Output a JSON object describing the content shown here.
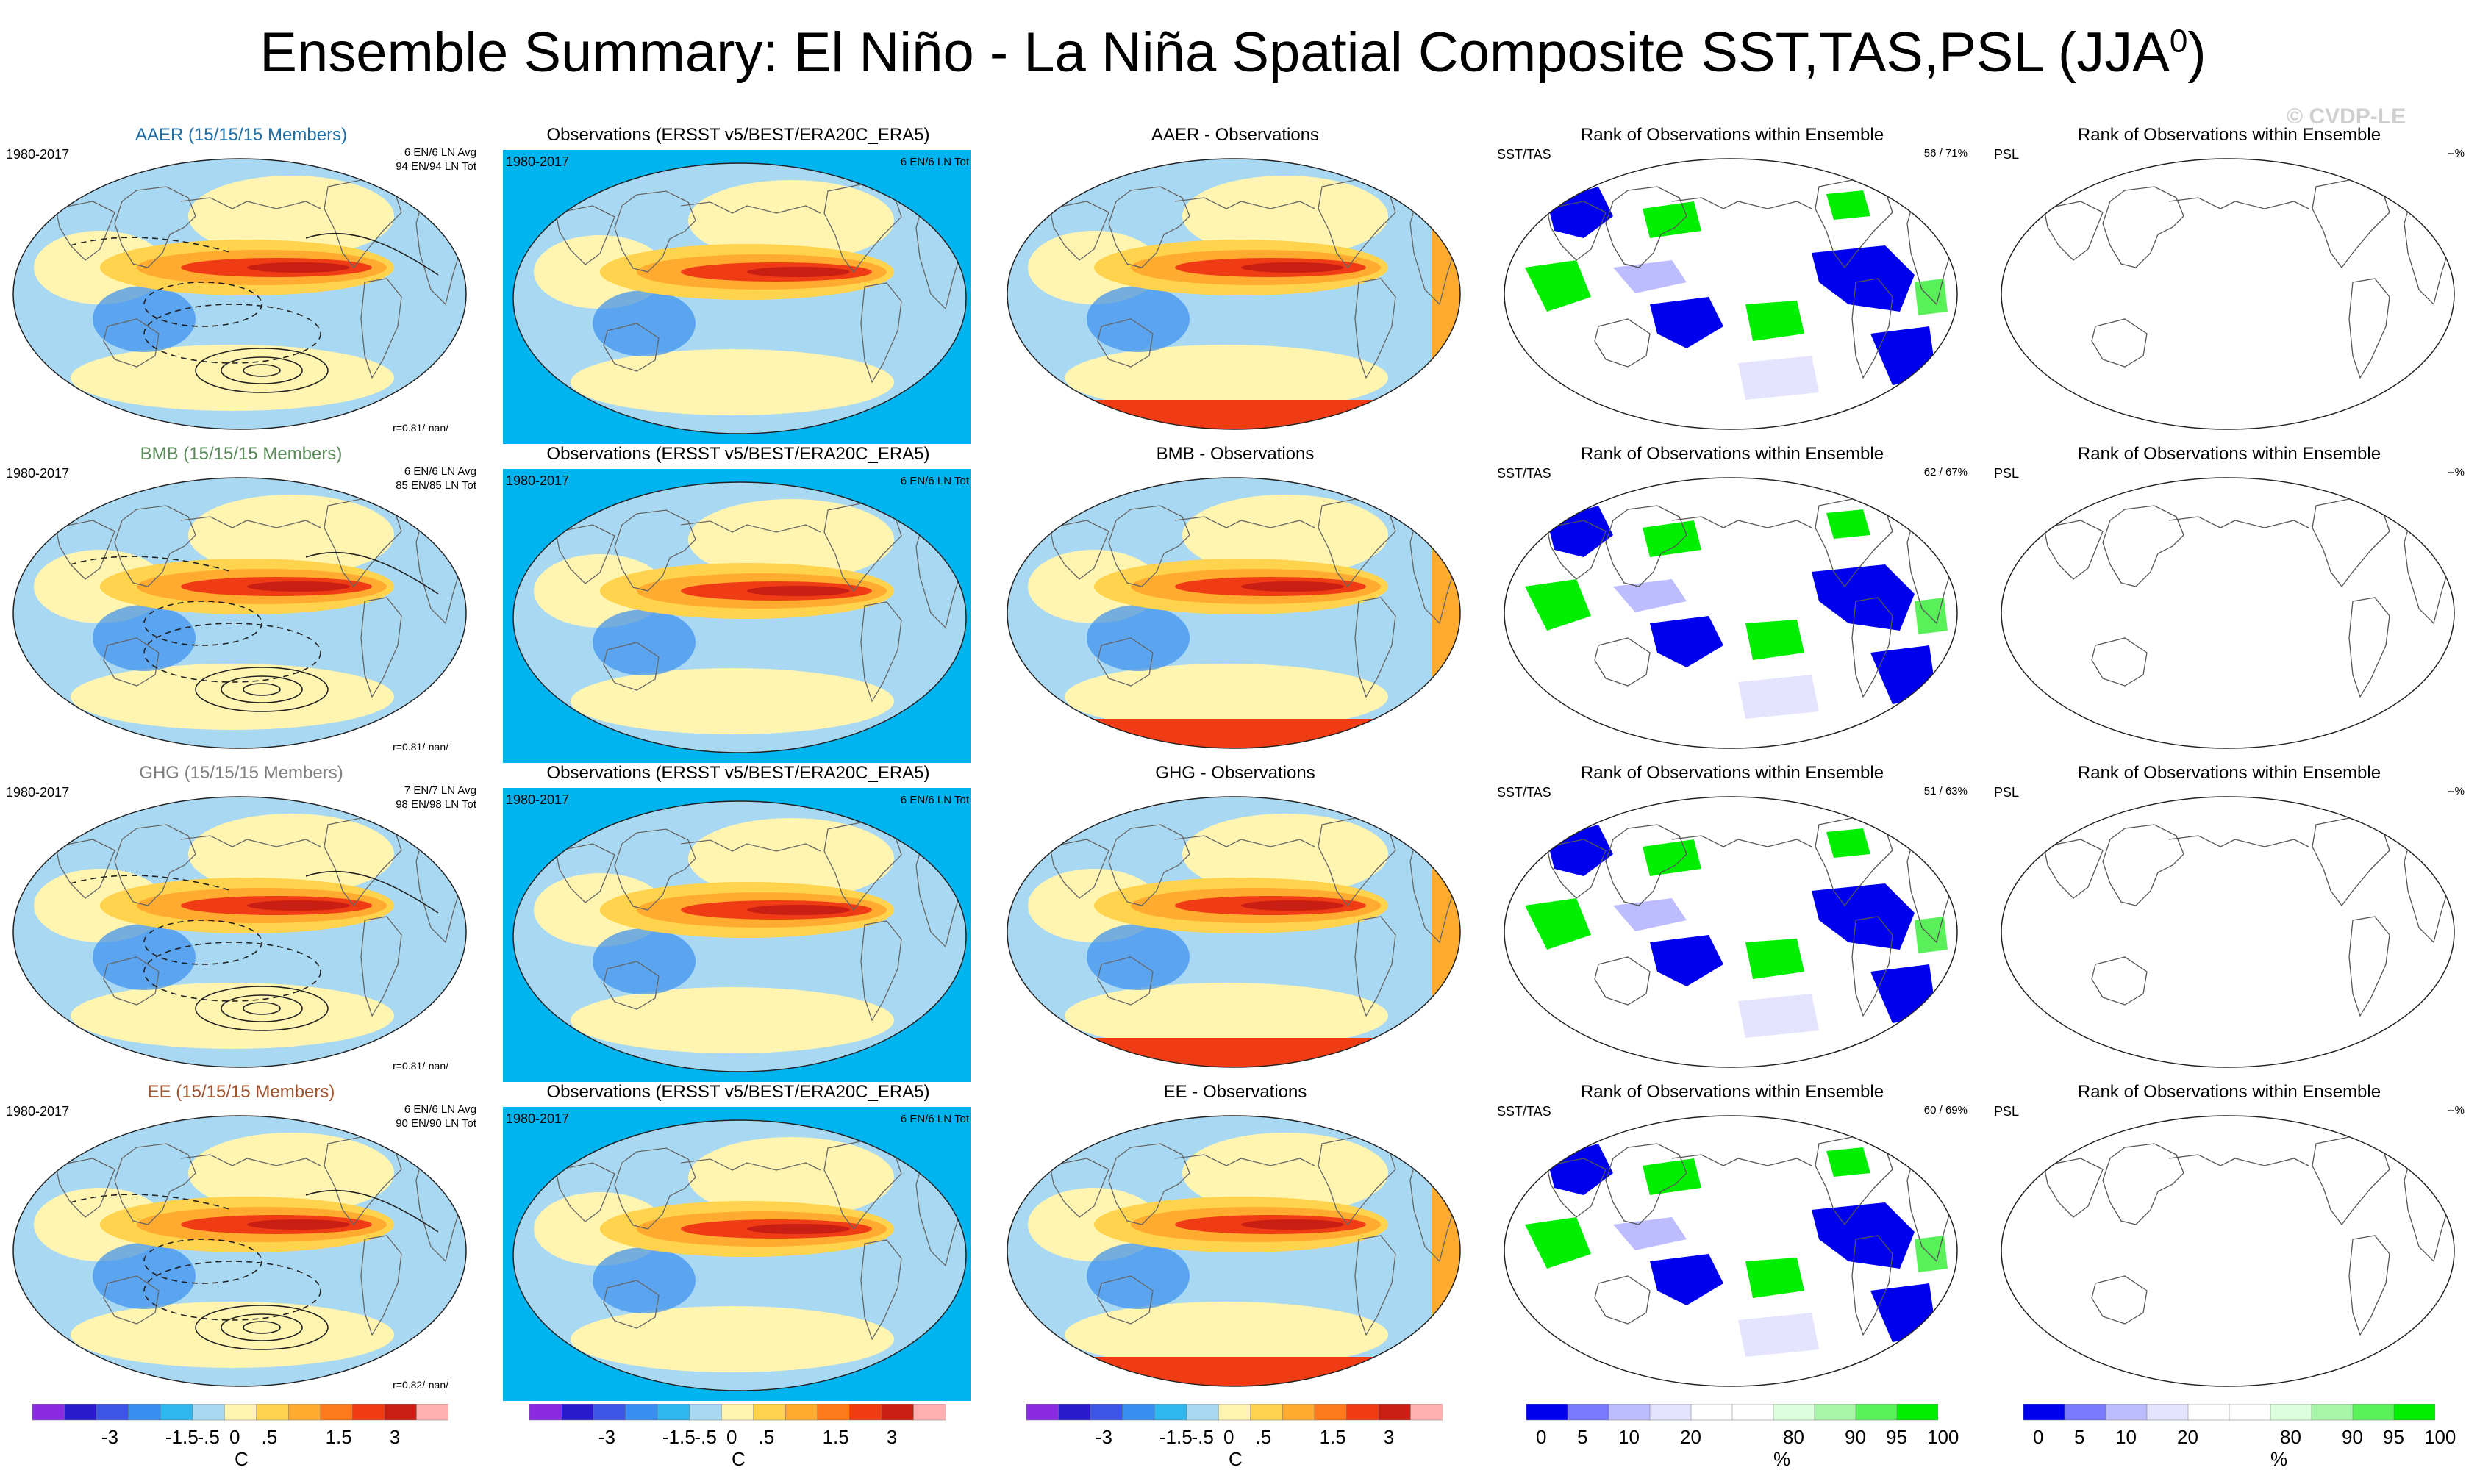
{
  "title": "Ensemble Summary: El Niño - La Niña Spatial Composite SST,TAS,PSL (JJA",
  "title_sup": "0",
  "watermark": "© CVDP-LE",
  "colors": {
    "ocean_obs": "#00b4f0",
    "title_AAER": "#1f6fa8",
    "title_BMB": "#5a8a5a",
    "title_GHG": "#808080",
    "title_EE": "#a0522d"
  },
  "rows": [
    {
      "ensemble": {
        "title": "AAER (15/15/15 Members)",
        "period": "1980-2017",
        "count1": "6 EN/6 LN Avg",
        "count2": "94 EN/94 LN Tot",
        "corr": "r=0.81/-nan/"
      },
      "obs": {
        "title": "Observations (ERSST v5/BEST/ERA20C_ERA5)",
        "period": "1980-2017",
        "count": "6 EN/6 LN Tot"
      },
      "diff": {
        "title": "AAER - Observations"
      },
      "rank": {
        "title": "Rank of Observations within Ensemble",
        "label": "SST/TAS",
        "pct": "56 /  71%"
      },
      "rank_psl": {
        "title": "Rank of Observations within Ensemble",
        "label": "PSL",
        "pct": "--%"
      }
    },
    {
      "ensemble": {
        "title": "BMB (15/15/15 Members)",
        "period": "1980-2017",
        "count1": "6 EN/6 LN Avg",
        "count2": "85 EN/85 LN Tot",
        "corr": "r=0.81/-nan/"
      },
      "obs": {
        "title": "Observations (ERSST v5/BEST/ERA20C_ERA5)",
        "period": "1980-2017",
        "count": "6 EN/6 LN Tot"
      },
      "diff": {
        "title": "BMB - Observations"
      },
      "rank": {
        "title": "Rank of Observations within Ensemble",
        "label": "SST/TAS",
        "pct": "62 /  67%"
      },
      "rank_psl": {
        "title": "Rank of Observations within Ensemble",
        "label": "PSL",
        "pct": "--%"
      }
    },
    {
      "ensemble": {
        "title": "GHG (15/15/15 Members)",
        "period": "1980-2017",
        "count1": "7 EN/7 LN Avg",
        "count2": "98 EN/98 LN Tot",
        "corr": "r=0.81/-nan/"
      },
      "obs": {
        "title": "Observations (ERSST v5/BEST/ERA20C_ERA5)",
        "period": "1980-2017",
        "count": "6 EN/6 LN Tot"
      },
      "diff": {
        "title": "GHG - Observations"
      },
      "rank": {
        "title": "Rank of Observations within Ensemble",
        "label": "SST/TAS",
        "pct": "51 /  63%"
      },
      "rank_psl": {
        "title": "Rank of Observations within Ensemble",
        "label": "PSL",
        "pct": "--%"
      }
    },
    {
      "ensemble": {
        "title": "EE (15/15/15 Members)",
        "period": "1980-2017",
        "count1": "6 EN/6 LN Avg",
        "count2": "90 EN/90 LN Tot",
        "corr": "r=0.82/-nan/"
      },
      "obs": {
        "title": "Observations (ERSST v5/BEST/ERA20C_ERA5)",
        "period": "1980-2017",
        "count": "6 EN/6 LN Tot"
      },
      "diff": {
        "title": "EE - Observations"
      },
      "rank": {
        "title": "Rank of Observations within Ensemble",
        "label": "SST/TAS",
        "pct": "60 /  69%"
      },
      "rank_psl": {
        "title": "Rank of Observations within Ensemble",
        "label": "PSL",
        "pct": "--%"
      }
    }
  ],
  "chart_data": [
    {
      "type": "heatmap",
      "name": "sst_colorbar",
      "unit": "C",
      "tick_labels": [
        "-3",
        "-1.5",
        "-.5",
        "0",
        ".5",
        "1.5",
        "3"
      ],
      "colors": [
        "#8a2be2",
        "#2a1acd",
        "#3c55e6",
        "#3a8ef0",
        "#2fb8f0",
        "#a9d8f2",
        "#fff5b0",
        "#ffd34d",
        "#ffab30",
        "#ff7a1a",
        "#f03c14",
        "#c81e14",
        "#ffb0b0"
      ]
    },
    {
      "type": "heatmap",
      "name": "rank_colorbar",
      "unit": "%",
      "tick_labels": [
        "0",
        "5",
        "10",
        "20",
        "80",
        "90",
        "95",
        "100"
      ],
      "colors": [
        "#0000ee",
        "#7a7aff",
        "#bcbcff",
        "#e4e4ff",
        "#ffffff",
        "#ffffff",
        "#dcffdc",
        "#a8f5a8",
        "#5af05a",
        "#00ee00"
      ]
    }
  ]
}
